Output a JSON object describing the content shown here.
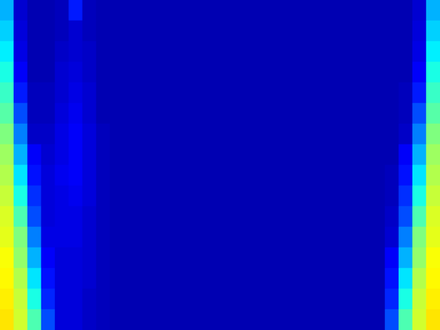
{
  "chart_data": {
    "type": "heatmap",
    "cells": [
      [
        0.3,
        0.08,
        0.05,
        0.05,
        0.06,
        0.15,
        0.06,
        0.05,
        0.05,
        0.05,
        0.05,
        0.05,
        0.05,
        0.05,
        0.05,
        0.05,
        0.05,
        0.05,
        0.05,
        0.05,
        0.05,
        0.05,
        0.05,
        0.05,
        0.05,
        0.05,
        0.05,
        0.05,
        0.05,
        0.05,
        0.08,
        0.3
      ],
      [
        0.33,
        0.09,
        0.05,
        0.05,
        0.06,
        0.08,
        0.06,
        0.05,
        0.05,
        0.05,
        0.05,
        0.05,
        0.05,
        0.05,
        0.05,
        0.05,
        0.05,
        0.05,
        0.05,
        0.05,
        0.05,
        0.05,
        0.05,
        0.05,
        0.05,
        0.05,
        0.05,
        0.05,
        0.05,
        0.05,
        0.09,
        0.33
      ],
      [
        0.36,
        0.1,
        0.05,
        0.05,
        0.07,
        0.08,
        0.07,
        0.05,
        0.05,
        0.05,
        0.05,
        0.05,
        0.05,
        0.05,
        0.05,
        0.05,
        0.05,
        0.05,
        0.05,
        0.05,
        0.05,
        0.05,
        0.05,
        0.05,
        0.05,
        0.05,
        0.05,
        0.05,
        0.05,
        0.05,
        0.1,
        0.36
      ],
      [
        0.4,
        0.12,
        0.05,
        0.05,
        0.08,
        0.09,
        0.07,
        0.05,
        0.05,
        0.05,
        0.05,
        0.05,
        0.05,
        0.05,
        0.05,
        0.05,
        0.05,
        0.05,
        0.05,
        0.05,
        0.05,
        0.05,
        0.05,
        0.05,
        0.05,
        0.05,
        0.05,
        0.05,
        0.05,
        0.05,
        0.12,
        0.4
      ],
      [
        0.43,
        0.15,
        0.06,
        0.06,
        0.08,
        0.1,
        0.08,
        0.05,
        0.05,
        0.05,
        0.05,
        0.05,
        0.05,
        0.05,
        0.05,
        0.05,
        0.05,
        0.05,
        0.05,
        0.05,
        0.05,
        0.05,
        0.05,
        0.05,
        0.05,
        0.05,
        0.05,
        0.05,
        0.05,
        0.06,
        0.15,
        0.43
      ],
      [
        0.46,
        0.2,
        0.06,
        0.06,
        0.09,
        0.11,
        0.08,
        0.05,
        0.05,
        0.05,
        0.05,
        0.05,
        0.05,
        0.05,
        0.05,
        0.05,
        0.05,
        0.05,
        0.05,
        0.05,
        0.05,
        0.05,
        0.05,
        0.05,
        0.05,
        0.05,
        0.05,
        0.05,
        0.05,
        0.06,
        0.2,
        0.46
      ],
      [
        0.5,
        0.25,
        0.07,
        0.07,
        0.1,
        0.12,
        0.09,
        0.06,
        0.05,
        0.05,
        0.05,
        0.05,
        0.05,
        0.05,
        0.05,
        0.05,
        0.05,
        0.05,
        0.05,
        0.05,
        0.05,
        0.05,
        0.05,
        0.05,
        0.05,
        0.05,
        0.05,
        0.05,
        0.05,
        0.07,
        0.25,
        0.5
      ],
      [
        0.53,
        0.3,
        0.12,
        0.08,
        0.1,
        0.12,
        0.09,
        0.06,
        0.05,
        0.05,
        0.05,
        0.05,
        0.05,
        0.05,
        0.05,
        0.05,
        0.05,
        0.05,
        0.05,
        0.05,
        0.05,
        0.05,
        0.05,
        0.05,
        0.05,
        0.05,
        0.05,
        0.05,
        0.05,
        0.12,
        0.3,
        0.53
      ],
      [
        0.55,
        0.35,
        0.14,
        0.09,
        0.11,
        0.12,
        0.09,
        0.06,
        0.05,
        0.05,
        0.05,
        0.05,
        0.05,
        0.05,
        0.05,
        0.05,
        0.05,
        0.05,
        0.05,
        0.05,
        0.05,
        0.05,
        0.05,
        0.05,
        0.05,
        0.05,
        0.05,
        0.05,
        0.06,
        0.14,
        0.35,
        0.55
      ],
      [
        0.57,
        0.4,
        0.17,
        0.09,
        0.1,
        0.11,
        0.09,
        0.06,
        0.05,
        0.05,
        0.05,
        0.05,
        0.05,
        0.05,
        0.05,
        0.05,
        0.05,
        0.05,
        0.05,
        0.05,
        0.05,
        0.05,
        0.05,
        0.05,
        0.05,
        0.05,
        0.05,
        0.05,
        0.06,
        0.17,
        0.4,
        0.57
      ],
      [
        0.59,
        0.45,
        0.2,
        0.09,
        0.1,
        0.1,
        0.08,
        0.06,
        0.05,
        0.05,
        0.05,
        0.05,
        0.05,
        0.05,
        0.05,
        0.05,
        0.05,
        0.05,
        0.05,
        0.05,
        0.05,
        0.05,
        0.05,
        0.05,
        0.05,
        0.05,
        0.05,
        0.05,
        0.07,
        0.2,
        0.45,
        0.59
      ],
      [
        0.6,
        0.5,
        0.25,
        0.1,
        0.1,
        0.1,
        0.08,
        0.06,
        0.05,
        0.05,
        0.05,
        0.05,
        0.05,
        0.05,
        0.05,
        0.05,
        0.05,
        0.05,
        0.05,
        0.05,
        0.05,
        0.05,
        0.05,
        0.05,
        0.05,
        0.05,
        0.05,
        0.05,
        0.08,
        0.25,
        0.5,
        0.6
      ],
      [
        0.62,
        0.52,
        0.3,
        0.12,
        0.09,
        0.09,
        0.08,
        0.06,
        0.05,
        0.05,
        0.05,
        0.05,
        0.05,
        0.05,
        0.05,
        0.05,
        0.05,
        0.05,
        0.05,
        0.05,
        0.05,
        0.05,
        0.05,
        0.05,
        0.05,
        0.05,
        0.05,
        0.05,
        0.12,
        0.3,
        0.52,
        0.62
      ],
      [
        0.63,
        0.55,
        0.35,
        0.14,
        0.09,
        0.09,
        0.08,
        0.06,
        0.05,
        0.05,
        0.05,
        0.05,
        0.05,
        0.05,
        0.05,
        0.05,
        0.05,
        0.05,
        0.05,
        0.05,
        0.05,
        0.05,
        0.05,
        0.05,
        0.05,
        0.05,
        0.05,
        0.05,
        0.14,
        0.35,
        0.55,
        0.63
      ],
      [
        0.64,
        0.57,
        0.4,
        0.16,
        0.09,
        0.09,
        0.07,
        0.06,
        0.05,
        0.05,
        0.05,
        0.05,
        0.05,
        0.05,
        0.05,
        0.05,
        0.05,
        0.05,
        0.05,
        0.05,
        0.05,
        0.05,
        0.05,
        0.05,
        0.05,
        0.05,
        0.05,
        0.05,
        0.16,
        0.4,
        0.57,
        0.64
      ],
      [
        0.65,
        0.58,
        0.45,
        0.2,
        0.09,
        0.09,
        0.07,
        0.06,
        0.05,
        0.05,
        0.05,
        0.05,
        0.05,
        0.05,
        0.05,
        0.05,
        0.05,
        0.05,
        0.05,
        0.05,
        0.05,
        0.05,
        0.05,
        0.05,
        0.05,
        0.05,
        0.05,
        0.05,
        0.2,
        0.45,
        0.58,
        0.65
      ]
    ],
    "color_range": [
      0,
      1
    ],
    "tick_labels": false
  }
}
